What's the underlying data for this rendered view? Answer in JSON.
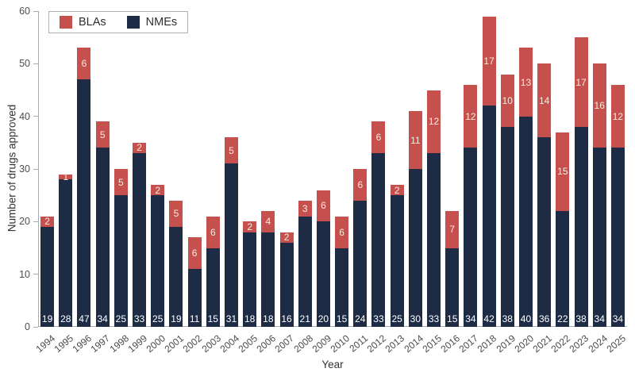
{
  "chart_data": {
    "type": "bar",
    "stacked": true,
    "title": "",
    "xlabel": "Year",
    "ylabel": "Number of drugs approved",
    "ylim": [
      0,
      60
    ],
    "yticks": [
      0,
      10,
      20,
      30,
      40,
      50,
      60
    ],
    "grid": false,
    "legend_position": "top-left",
    "categories": [
      "1994",
      "1995",
      "1996",
      "1997",
      "1998",
      "1999",
      "2000",
      "2001",
      "2002",
      "2003",
      "2004",
      "2005",
      "2006",
      "2007",
      "2008",
      "2009",
      "2010",
      "2011",
      "2012",
      "2013",
      "2014",
      "2015",
      "2016",
      "2017",
      "2018",
      "2019",
      "2020",
      "2021",
      "2022",
      "2023",
      "2024",
      "2025"
    ],
    "series": [
      {
        "name": "BLAs",
        "color": "#c5504e",
        "label_color": "#f5eee0",
        "values": [
          2,
          1,
          6,
          5,
          5,
          2,
          2,
          5,
          6,
          6,
          5,
          2,
          4,
          2,
          3,
          6,
          6,
          6,
          6,
          2,
          11,
          12,
          7,
          12,
          17,
          10,
          13,
          14,
          15,
          17,
          16,
          12
        ]
      },
      {
        "name": "NMEs",
        "color": "#1e2b44",
        "label_color": "#ffffff",
        "values": [
          19,
          28,
          47,
          34,
          25,
          33,
          25,
          19,
          11,
          15,
          31,
          18,
          18,
          16,
          21,
          20,
          15,
          24,
          33,
          25,
          30,
          33,
          15,
          34,
          42,
          38,
          40,
          36,
          22,
          38,
          34,
          34
        ]
      }
    ],
    "stack_order": [
      "NMEs",
      "BLAs"
    ],
    "axis_color": "#a9a9a9",
    "tick_label_color": "#4d4d4d"
  }
}
